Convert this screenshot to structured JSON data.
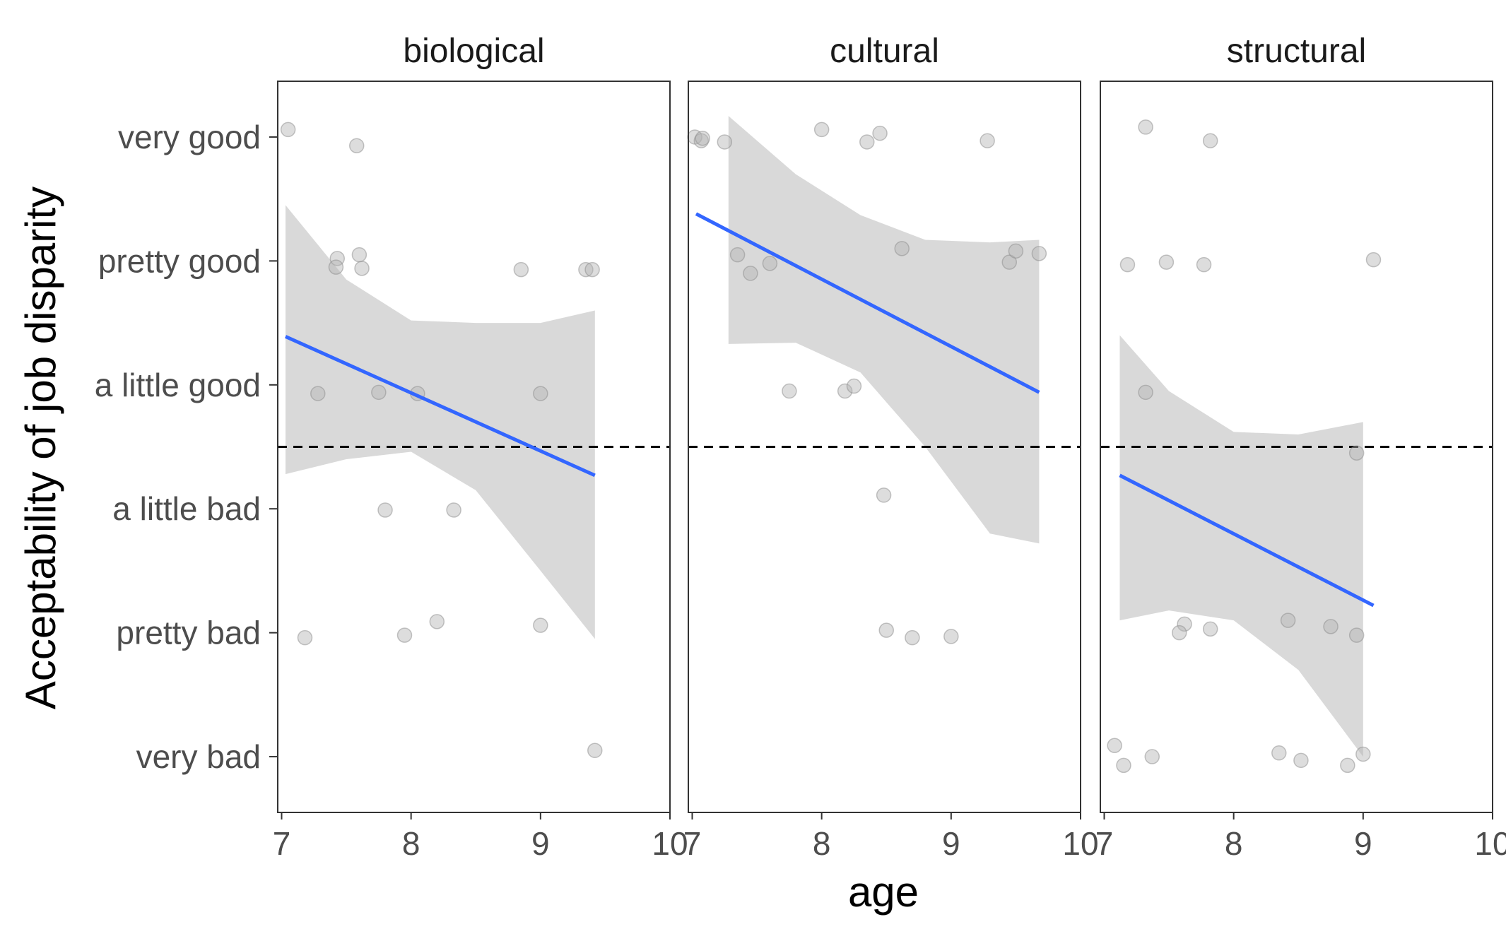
{
  "chart_data": {
    "type": "scatter",
    "xlabel": "age",
    "ylabel": "Acceptability of job disparity",
    "y_categories": [
      "very bad",
      "pretty bad",
      "a little bad",
      "a little good",
      "pretty good",
      "very good"
    ],
    "y_values": [
      1,
      2,
      3,
      4,
      5,
      6
    ],
    "xlim": [
      6.97,
      10.0
    ],
    "ylim": [
      0.55,
      6.45
    ],
    "x_ticks": [
      7,
      8,
      9,
      10
    ],
    "reference_line_y": 3.5,
    "grid": false,
    "colors": {
      "points": "#b3b3b3",
      "fit_line": "#3366ff",
      "ribbon": "#bfbfbf",
      "reference_line": "#000000"
    },
    "panels": [
      {
        "facet": "biological",
        "points": [
          [
            7.05,
            6.06
          ],
          [
            7.58,
            5.93
          ],
          [
            7.43,
            5.02
          ],
          [
            7.42,
            4.95
          ],
          [
            7.6,
            5.05
          ],
          [
            7.62,
            4.94
          ],
          [
            8.85,
            4.93
          ],
          [
            9.35,
            4.93
          ],
          [
            9.4,
            4.93
          ],
          [
            7.28,
            3.93
          ],
          [
            7.75,
            3.94
          ],
          [
            8.05,
            3.93
          ],
          [
            9.0,
            3.93
          ],
          [
            7.8,
            2.99
          ],
          [
            8.33,
            2.99
          ],
          [
            7.18,
            1.96
          ],
          [
            7.95,
            1.98
          ],
          [
            8.2,
            2.09
          ],
          [
            9.0,
            2.06
          ],
          [
            9.42,
            1.05
          ]
        ],
        "fit": {
          "x": [
            7.03,
            9.42
          ],
          "y": [
            4.39,
            3.27
          ]
        },
        "ribbon": {
          "x": [
            7.03,
            7.5,
            8.0,
            8.5,
            9.0,
            9.42
          ],
          "lower": [
            3.28,
            3.4,
            3.46,
            3.15,
            2.5,
            1.95
          ],
          "upper": [
            5.45,
            4.85,
            4.52,
            4.5,
            4.5,
            4.6
          ]
        }
      },
      {
        "facet": "cultural",
        "points": [
          [
            7.02,
            6.0
          ],
          [
            7.07,
            5.97
          ],
          [
            7.08,
            5.99
          ],
          [
            7.25,
            5.96
          ],
          [
            8.0,
            6.06
          ],
          [
            8.35,
            5.96
          ],
          [
            8.45,
            6.03
          ],
          [
            9.28,
            5.97
          ],
          [
            7.35,
            5.05
          ],
          [
            7.45,
            4.9
          ],
          [
            7.6,
            4.98
          ],
          [
            8.62,
            5.1
          ],
          [
            9.45,
            4.99
          ],
          [
            9.5,
            5.08
          ],
          [
            9.68,
            5.06
          ],
          [
            7.75,
            3.95
          ],
          [
            8.18,
            3.95
          ],
          [
            8.25,
            3.99
          ],
          [
            8.48,
            3.11
          ],
          [
            8.5,
            2.02
          ],
          [
            8.7,
            1.96
          ],
          [
            9.0,
            1.97
          ]
        ],
        "fit": {
          "x": [
            7.03,
            9.68
          ],
          "y": [
            5.38,
            3.94
          ]
        },
        "ribbon": {
          "x": [
            7.28,
            7.8,
            8.3,
            8.8,
            9.3,
            9.68
          ],
          "lower": [
            4.33,
            4.34,
            4.1,
            3.5,
            2.8,
            2.72
          ],
          "upper": [
            6.17,
            5.7,
            5.37,
            5.17,
            5.15,
            5.17
          ]
        }
      },
      {
        "facet": "structural",
        "points": [
          [
            7.32,
            6.08
          ],
          [
            7.82,
            5.97
          ],
          [
            7.18,
            4.97
          ],
          [
            7.48,
            4.99
          ],
          [
            7.77,
            4.97
          ],
          [
            9.08,
            5.01
          ],
          [
            7.32,
            3.94
          ],
          [
            8.95,
            3.45
          ],
          [
            7.62,
            2.07
          ],
          [
            7.58,
            2.0
          ],
          [
            7.82,
            2.03
          ],
          [
            8.42,
            2.1
          ],
          [
            8.75,
            2.05
          ],
          [
            8.95,
            1.98
          ],
          [
            7.08,
            1.09
          ],
          [
            7.15,
            0.93
          ],
          [
            7.37,
            1.0
          ],
          [
            8.35,
            1.03
          ],
          [
            8.52,
            0.97
          ],
          [
            8.88,
            0.93
          ],
          [
            9.0,
            1.02
          ]
        ],
        "fit": {
          "x": [
            7.12,
            9.08
          ],
          "y": [
            3.27,
            2.22
          ]
        },
        "ribbon": {
          "x": [
            7.12,
            7.5,
            8.0,
            8.5,
            9.0
          ],
          "lower": [
            2.1,
            2.18,
            2.1,
            1.7,
            1.0
          ],
          "upper": [
            4.4,
            3.95,
            3.62,
            3.6,
            3.7
          ]
        }
      }
    ]
  }
}
